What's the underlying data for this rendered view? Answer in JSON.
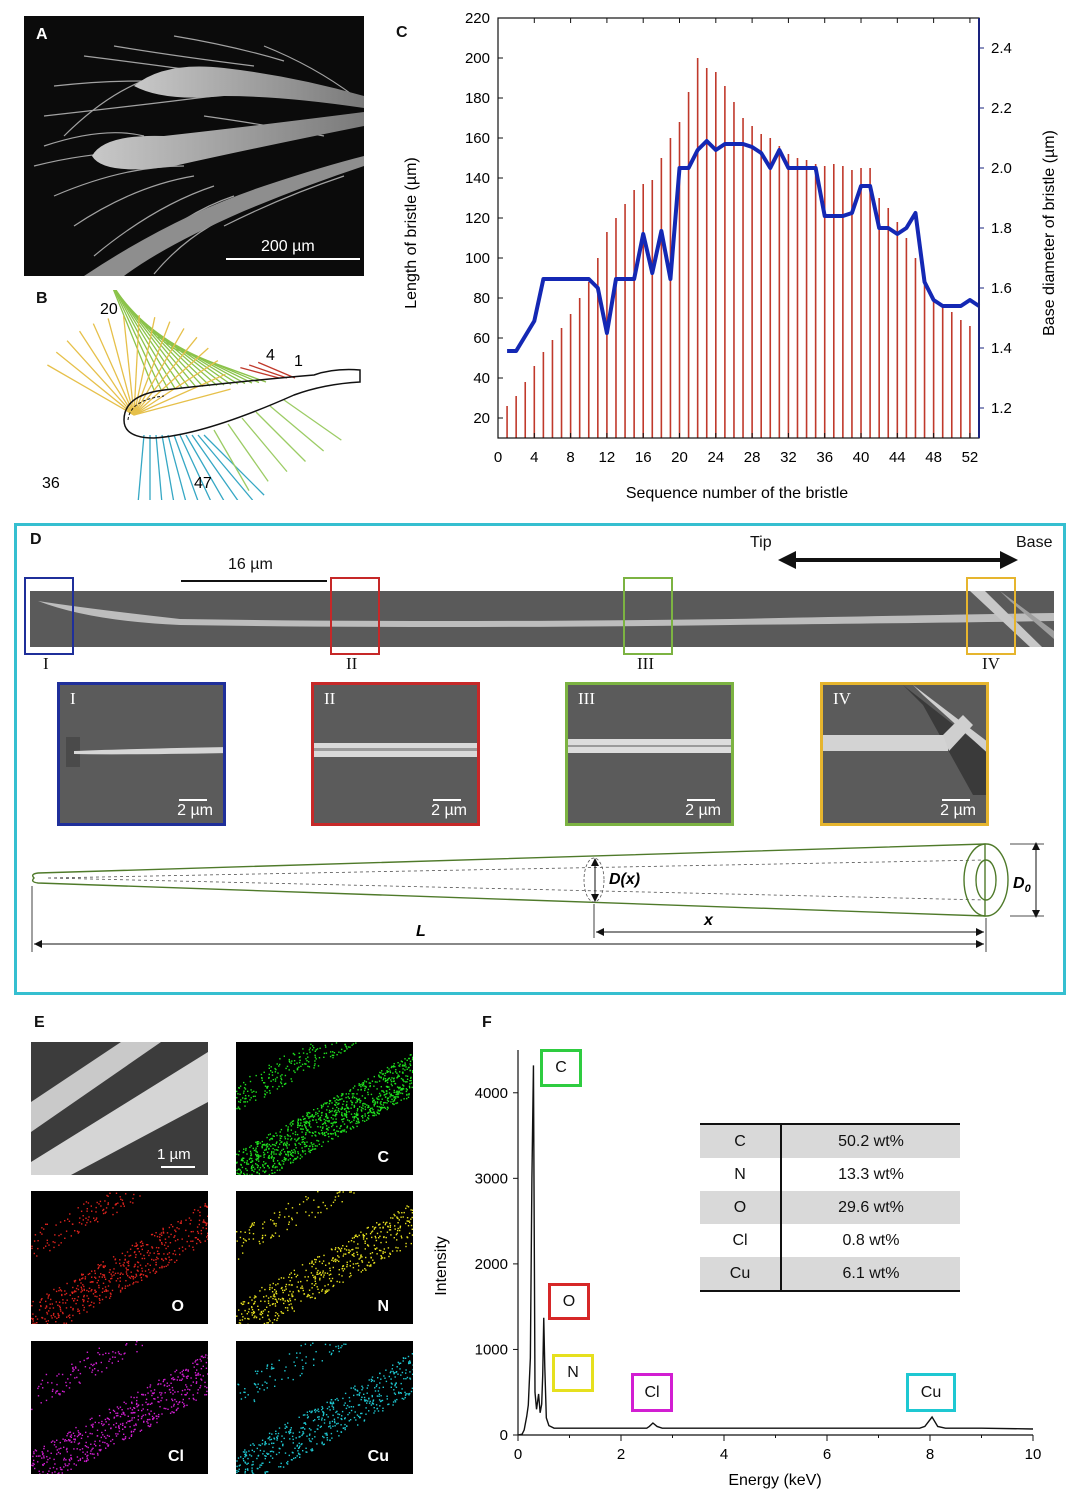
{
  "panel_labels": {
    "A": "A",
    "B": "B",
    "C": "C",
    "D": "D",
    "E": "E",
    "F": "F"
  },
  "panel_a": {
    "scale_bar": "200 µm"
  },
  "panel_b": {
    "numbers": [
      "20",
      "4",
      "1",
      "36",
      "47"
    ]
  },
  "panel_d": {
    "scale_bar": "16 µm",
    "direction_left": "Tip",
    "direction_right": "Base",
    "regions": [
      "I",
      "II",
      "III",
      "IV"
    ],
    "insets": [
      {
        "name": "I",
        "scale": "2 µm",
        "color": "#1f2f9a"
      },
      {
        "name": "II",
        "scale": "2 µm",
        "color": "#c62828"
      },
      {
        "name": "III",
        "scale": "2 µm",
        "color": "#7cb342"
      },
      {
        "name": "IV",
        "scale": "2 µm",
        "color": "#e6b52e"
      }
    ],
    "schematic": {
      "dx": "D(x)",
      "d0": "D",
      "d0_sub": "0",
      "length": "L",
      "x": "x"
    }
  },
  "panel_e": {
    "scale_bar": "1 µm",
    "maps": [
      {
        "element": "C",
        "color": "#1ee21e"
      },
      {
        "element": "O",
        "color": "#e0241e"
      },
      {
        "element": "N",
        "color": "#e6e01e"
      },
      {
        "element": "Cl",
        "color": "#d21ed2"
      },
      {
        "element": "Cu",
        "color": "#1ec8d2"
      }
    ]
  },
  "composition_table": [
    {
      "element": "C",
      "value": "50.2 wt%"
    },
    {
      "element": "N",
      "value": "13.3 wt%"
    },
    {
      "element": "O",
      "value": "29.6 wt%"
    },
    {
      "element": "Cl",
      "value": "0.8 wt%"
    },
    {
      "element": "Cu",
      "value": "6.1 wt%"
    }
  ],
  "chart_data": [
    {
      "type": "bar",
      "panel": "C",
      "xlabel": "Sequence number of the bristle",
      "ylabel": "Length of bristle (µm)",
      "y2label": "Base diameter of bristle (µm)",
      "xlim": [
        0,
        53
      ],
      "ylim": [
        10,
        220
      ],
      "y2lim": [
        1.1,
        2.5
      ],
      "xticks": [
        0,
        4,
        8,
        12,
        16,
        20,
        24,
        28,
        32,
        36,
        40,
        44,
        48,
        52
      ],
      "yticks": [
        20,
        40,
        60,
        80,
        100,
        120,
        140,
        160,
        180,
        200,
        220
      ],
      "y2ticks": [
        1.2,
        1.4,
        1.6,
        1.8,
        2.0,
        2.2,
        2.4
      ],
      "bar_color": "#c0392b",
      "line_color": "#1428b4",
      "x": [
        1,
        2,
        3,
        4,
        5,
        6,
        7,
        8,
        9,
        10,
        11,
        12,
        13,
        14,
        15,
        16,
        17,
        18,
        19,
        20,
        21,
        22,
        23,
        24,
        25,
        26,
        27,
        28,
        29,
        30,
        31,
        32,
        33,
        34,
        35,
        36,
        37,
        38,
        39,
        40,
        41,
        42,
        43,
        44,
        45,
        46,
        47,
        48,
        49,
        50,
        51,
        52,
        53
      ],
      "series": [
        {
          "type": "bar",
          "axis": "left",
          "values": [
            26,
            31,
            38,
            46,
            53,
            59,
            65,
            72,
            80,
            88,
            100,
            113,
            120,
            127,
            134,
            137,
            139,
            150,
            160,
            168,
            183,
            200,
            195,
            193,
            186,
            178,
            170,
            166,
            162,
            160,
            156,
            152,
            150,
            149,
            147,
            146,
            147,
            146,
            144,
            145,
            145,
            130,
            125,
            118,
            110,
            100,
            92,
            80,
            76,
            73,
            69,
            66,
            60
          ]
        },
        {
          "type": "line",
          "axis": "right",
          "values": [
            1.39,
            1.39,
            1.44,
            1.49,
            1.63,
            1.63,
            1.63,
            1.63,
            1.63,
            1.63,
            1.6,
            1.45,
            1.63,
            1.63,
            1.63,
            1.78,
            1.65,
            1.79,
            1.63,
            2.0,
            2.0,
            2.06,
            2.09,
            2.06,
            2.08,
            2.08,
            2.08,
            2.07,
            2.05,
            2.0,
            2.06,
            2.0,
            2.0,
            2.0,
            2.0,
            1.84,
            1.84,
            1.84,
            1.85,
            1.94,
            1.94,
            1.8,
            1.8,
            1.78,
            1.8,
            1.85,
            1.62,
            1.56,
            1.54,
            1.54,
            1.54,
            1.56,
            1.54
          ]
        }
      ]
    },
    {
      "type": "line",
      "panel": "F",
      "xlabel": "Energy (keV)",
      "ylabel": "Intensity",
      "xlim": [
        0,
        10
      ],
      "ylim": [
        0,
        4500
      ],
      "xticks": [
        0,
        2,
        4,
        6,
        8,
        10
      ],
      "yticks": [
        0,
        1000,
        2000,
        3000,
        4000
      ],
      "line_color": "#111111",
      "series": [
        {
          "x": [
            0,
            0.08,
            0.12,
            0.17,
            0.2,
            0.24,
            0.27,
            0.3,
            0.33,
            0.36,
            0.4,
            0.43,
            0.46,
            0.48,
            0.5,
            0.52,
            0.55,
            0.6,
            0.7,
            0.9,
            1.5,
            2.5,
            2.55,
            2.62,
            2.7,
            2.8,
            4,
            6,
            7.8,
            7.9,
            8.04,
            8.15,
            8.3,
            9,
            10
          ],
          "y": [
            0,
            10,
            60,
            220,
            350,
            900,
            3000,
            4320,
            500,
            300,
            480,
            260,
            360,
            700,
            1370,
            800,
            200,
            110,
            80,
            80,
            80,
            80,
            100,
            140,
            100,
            80,
            80,
            80,
            80,
            100,
            210,
            100,
            80,
            80,
            70
          ]
        }
      ],
      "peak_labels": [
        {
          "label": "C",
          "color": "#2ecc40"
        },
        {
          "label": "O",
          "color": "#d62728"
        },
        {
          "label": "N",
          "color": "#e6e01e"
        },
        {
          "label": "Cl",
          "color": "#d21ed2"
        },
        {
          "label": "Cu",
          "color": "#1ec8d2"
        }
      ]
    }
  ]
}
